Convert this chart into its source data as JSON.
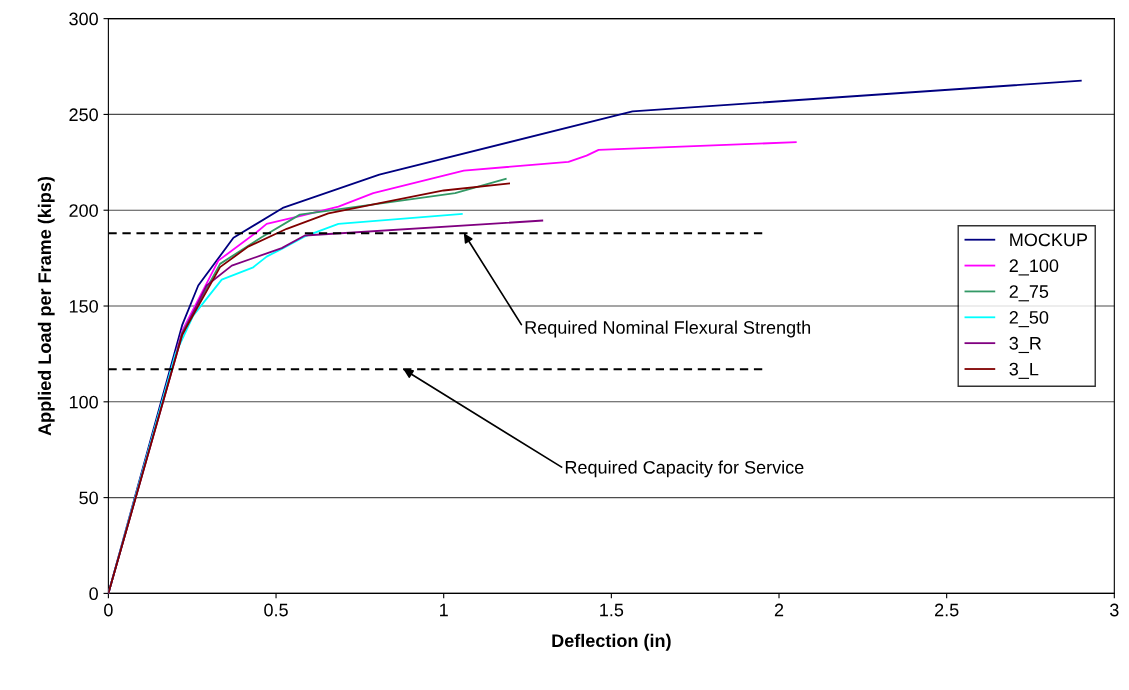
{
  "chart_data": {
    "type": "line",
    "xlabel": "Deflection (in)",
    "ylabel": "Applied Load per Frame (kips)",
    "xlim": [
      0,
      3
    ],
    "ylim": [
      0,
      300
    ],
    "xticks": [
      0,
      0.5,
      1,
      1.5,
      2,
      2.5,
      3
    ],
    "yticks": [
      0,
      50,
      100,
      150,
      200,
      250,
      300
    ],
    "grid": "y",
    "legend": "right",
    "marker": "none",
    "line_style": "solid",
    "series": [
      {
        "name": "MOCKUP",
        "color": "#000080",
        "x": [
          0,
          0.22,
          0.268,
          0.373,
          0.52,
          0.808,
          1.563,
          2.9
        ],
        "values": [
          0,
          140,
          160.7,
          185.6,
          201.2,
          218.6,
          251.6,
          267.6
        ]
      },
      {
        "name": "2_100",
        "color": "#ff00ff",
        "x": [
          0,
          0.22,
          0.328,
          0.442,
          0.472,
          0.577,
          0.686,
          0.79,
          1.06,
          1.372,
          1.426,
          1.462,
          2.05
        ],
        "values": [
          0,
          137,
          173.7,
          188.5,
          192.9,
          197.2,
          201.9,
          208.9,
          220.7,
          225.2,
          228.5,
          231.5,
          235.5
        ]
      },
      {
        "name": "2_75",
        "color": "#339966",
        "x": [
          0,
          0.22,
          0.333,
          0.457,
          0.571,
          1.034,
          1.185
        ],
        "values": [
          0,
          136,
          172,
          185.9,
          197.7,
          208.9,
          216.4
        ]
      },
      {
        "name": "2_50",
        "color": "#00ffff",
        "x": [
          0,
          0.2,
          0.253,
          0.338,
          0.432,
          0.472,
          0.517,
          0.586,
          0.686,
          1.054
        ],
        "values": [
          0,
          125,
          145,
          163.8,
          170.2,
          175.8,
          179.8,
          186.3,
          192.9,
          198.1
        ]
      },
      {
        "name": "3_R",
        "color": "#800080",
        "x": [
          0,
          0.22,
          0.293,
          0.368,
          0.517,
          0.586,
          1.294
        ],
        "values": [
          0,
          135,
          160.7,
          171.1,
          180.2,
          186.8,
          194.6
        ]
      },
      {
        "name": "3_L",
        "color": "#800000",
        "x": [
          0,
          0.22,
          0.333,
          0.417,
          0.532,
          0.656,
          1.0,
          1.195
        ],
        "values": [
          0,
          135,
          170.3,
          181,
          190.3,
          198.4,
          210.3,
          214
        ]
      },
      {
        "color": "#000000",
        "line_style": "dashed",
        "x": [
          0,
          1.95
        ],
        "values": [
          188,
          188
        ]
      },
      {
        "color": "#000000",
        "line_style": "dashed",
        "x": [
          0,
          1.95
        ],
        "values": [
          117,
          117
        ]
      }
    ],
    "annotations": [
      {
        "text": "Required Nominal Flexural Strength",
        "x": 1.06,
        "y": 188
      },
      {
        "text": "Required Capacity for Service",
        "x": 0.88,
        "y": 117
      }
    ]
  }
}
